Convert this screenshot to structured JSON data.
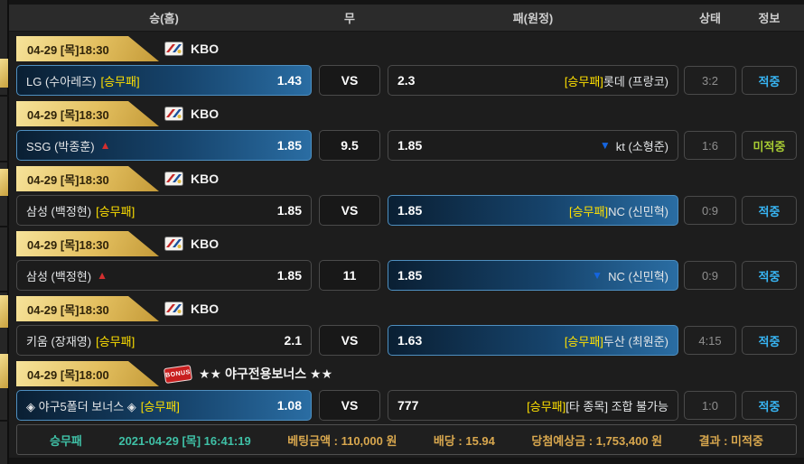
{
  "header": {
    "columns": {
      "home": "승(홈)",
      "draw": "무",
      "away": "패(원정)",
      "status": "상태",
      "info": "정보"
    }
  },
  "icons": {
    "up_arrow": "▲",
    "down_arrow": "▼",
    "bonus_stamp_label": "BONUS"
  },
  "colors": {
    "gold_tab": "#e3bf5f",
    "selected_blue": "#2a6da3",
    "hit_cyan": "#38b6f5",
    "miss_lime": "#a8cc33",
    "tag_yellow": "#ffe100"
  },
  "games": [
    {
      "datetime": "04-29 [목]18:30",
      "league": "KBO",
      "league_icon": "kbo-flag-icon",
      "home": {
        "name": "LG (수아레즈)",
        "tag": "[승무패]",
        "arrow": "",
        "odds": "1.43",
        "selected": true
      },
      "draw": "VS",
      "away": {
        "odds": "2.3",
        "tag": "[승무패]",
        "arrow": "",
        "name": "롯데 (프랑코)",
        "selected": false
      },
      "score": "3:2",
      "status": "적중",
      "status_type": "hit"
    },
    {
      "datetime": "04-29 [목]18:30",
      "league": "KBO",
      "league_icon": "kbo-flag-icon",
      "home": {
        "name": "SSG (박종훈)",
        "tag": "",
        "arrow": "up",
        "odds": "1.85",
        "selected": true
      },
      "draw": "9.5",
      "away": {
        "odds": "1.85",
        "tag": "",
        "arrow": "down",
        "name": "kt (소형준)",
        "selected": false
      },
      "score": "1:6",
      "status": "미적중",
      "status_type": "miss"
    },
    {
      "datetime": "04-29 [목]18:30",
      "league": "KBO",
      "league_icon": "kbo-flag-icon",
      "home": {
        "name": "삼성 (백정현)",
        "tag": "[승무패]",
        "arrow": "",
        "odds": "1.85",
        "selected": false
      },
      "draw": "VS",
      "away": {
        "odds": "1.85",
        "tag": "[승무패]",
        "arrow": "",
        "name": "NC (신민혁)",
        "selected": true
      },
      "score": "0:9",
      "status": "적중",
      "status_type": "hit"
    },
    {
      "datetime": "04-29 [목]18:30",
      "league": "KBO",
      "league_icon": "kbo-flag-icon",
      "home": {
        "name": "삼성 (백정현)",
        "tag": "",
        "arrow": "up",
        "odds": "1.85",
        "selected": false
      },
      "draw": "11",
      "away": {
        "odds": "1.85",
        "tag": "",
        "arrow": "down",
        "name": "NC (신민혁)",
        "selected": true
      },
      "score": "0:9",
      "status": "적중",
      "status_type": "hit"
    },
    {
      "datetime": "04-29 [목]18:30",
      "league": "KBO",
      "league_icon": "kbo-flag-icon",
      "home": {
        "name": "키움 (장재영)",
        "tag": "[승무패]",
        "arrow": "",
        "odds": "2.1",
        "selected": false
      },
      "draw": "VS",
      "away": {
        "odds": "1.63",
        "tag": "[승무패]",
        "arrow": "",
        "name": "두산 (최원준)",
        "selected": true
      },
      "score": "4:15",
      "status": "적중",
      "status_type": "hit"
    },
    {
      "datetime": "04-29 [목]18:00",
      "league": "★★ 야구전용보너스 ★★",
      "league_icon": "bonus-stamp-icon",
      "home": {
        "name": "◈ 야구5폴더 보너스 ◈",
        "tag": "[승무패]",
        "arrow": "",
        "odds": "1.08",
        "selected": true
      },
      "draw": "VS",
      "away": {
        "odds": "777",
        "tag": "[승무패]",
        "arrow": "",
        "name": "[타 종목] 조합 불가능",
        "selected": false
      },
      "score": "1:0",
      "status": "적중",
      "status_type": "hit"
    }
  ],
  "summary": {
    "items": [
      {
        "label": "승무패",
        "tone": "teal"
      },
      {
        "label": "2021-04-29 [목] 16:41:19",
        "tone": "teal"
      },
      {
        "label": "베팅금액 : 110,000 원",
        "tone": "gold"
      },
      {
        "label": "배당 : 15.94",
        "tone": "gold"
      },
      {
        "label": "당첨예상금 : 1,753,400 원",
        "tone": "gold"
      },
      {
        "label": "결과 : 미적중",
        "tone": "gold"
      }
    ]
  }
}
